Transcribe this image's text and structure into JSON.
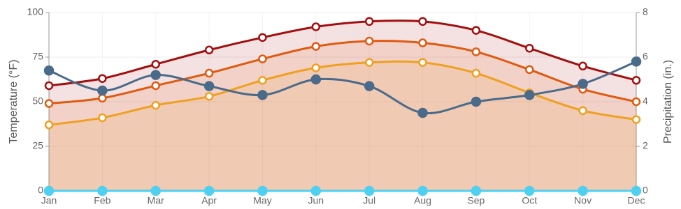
{
  "chart_data": {
    "type": "line",
    "categories": [
      "Jan",
      "Feb",
      "Mar",
      "Apr",
      "May",
      "Jun",
      "Jul",
      "Aug",
      "Sep",
      "Oct",
      "Nov",
      "Dec"
    ],
    "series": [
      {
        "color": "#a30f0f",
        "area": true,
        "values": [
          59,
          63,
          71,
          79,
          86,
          92,
          95,
          95,
          90,
          80,
          70,
          62
        ]
      },
      {
        "color": "#e05a10",
        "area": true,
        "values": [
          49,
          52,
          59,
          66,
          74,
          81,
          84,
          83,
          78,
          68,
          57,
          50
        ]
      },
      {
        "color": "#f0a020",
        "area": true,
        "values": [
          37,
          41,
          48,
          53,
          62,
          69,
          72,
          72,
          66,
          55,
          45,
          40
        ]
      },
      {
        "color": "#4a6a8a",
        "axis": "y2",
        "filled": true,
        "values": [
          5.4,
          4.5,
          5.2,
          4.7,
          4.3,
          5.0,
          4.7,
          3.5,
          4.0,
          4.3,
          4.8,
          5.8
        ]
      },
      {
        "color": "#4fd0f0",
        "axis": "y2",
        "filled": true,
        "values": [
          0,
          0,
          0,
          0,
          0,
          0,
          0,
          0,
          0,
          0,
          0,
          0
        ]
      }
    ],
    "ylabel": "Temperature (°F)",
    "y2label": "Precipitation (in.)",
    "ylim": [
      0,
      100
    ],
    "yticks": [
      0,
      25,
      50,
      75,
      100
    ],
    "y2lim": [
      0,
      8
    ],
    "y2ticks": [
      0,
      2,
      4,
      6,
      8
    ],
    "grid": true
  }
}
